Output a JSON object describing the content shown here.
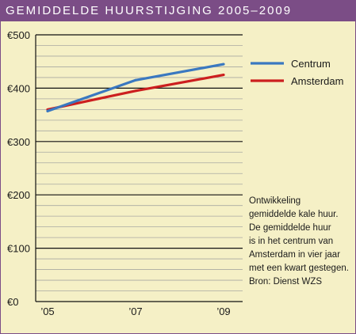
{
  "header": {
    "title": "GEMIDDELDE HUURSTIJGING 2005–2009"
  },
  "caption": {
    "lines": [
      "Ontwikkeling",
      "gemiddelde kale huur.",
      "De gemiddelde huur",
      "is in het centrum van",
      "Amsterdam in vier jaar",
      "met een kwart gestegen.",
      "Bron: Dienst WZS"
    ]
  },
  "colors": {
    "title_bar": "#7b4d86",
    "background": "#f5f0c6",
    "centrum": "#3a78c0",
    "amsterdam": "#cc1f1f"
  },
  "chart_data": {
    "type": "line",
    "title": "GEMIDDELDE HUURSTIJGING 2005–2009",
    "x": [
      2005,
      2007,
      2009
    ],
    "x_tick_labels": [
      "’05",
      "’07",
      "’09"
    ],
    "y_tick_values": [
      0,
      100,
      200,
      300,
      400,
      500
    ],
    "y_tick_labels": [
      "€0",
      "€100",
      "€200",
      "€300",
      "€400",
      "€500"
    ],
    "ylim": [
      0,
      500
    ],
    "xlim": [
      2005,
      2009
    ],
    "grid": true,
    "legend_position": "top-right",
    "series": [
      {
        "name": "Centrum",
        "color": "#3a78c0",
        "values": [
          357,
          415,
          445
        ]
      },
      {
        "name": "Amsterdam",
        "color": "#cc1f1f",
        "values": [
          360,
          395,
          425
        ]
      }
    ]
  }
}
